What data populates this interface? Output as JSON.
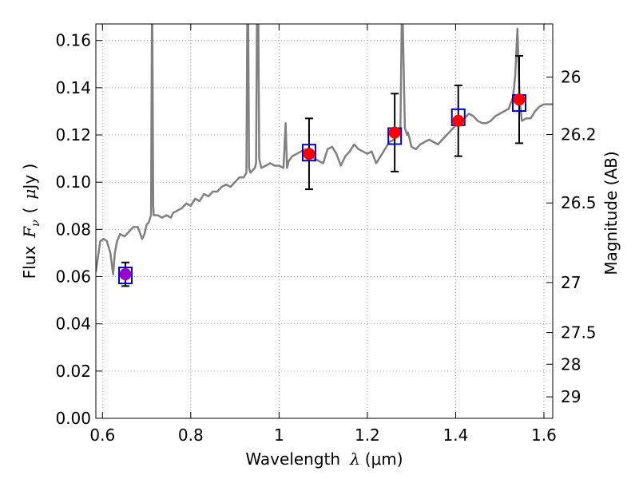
{
  "chart_data": {
    "type": "scatter",
    "title": "",
    "xlabel": "Wavelength",
    "xlabel_math": "λ",
    "xlabel_unit": "(μm)",
    "ylabel": "Flux",
    "ylabel_math": "F",
    "ylabel_math_sub": "ν",
    "ylabel_unit_open": "(",
    "ylabel_unit_mu": "μ",
    "ylabel_unit_rest": "Jy )",
    "y2label": "Magnitude (AB)",
    "xlim": [
      0.585,
      1.62
    ],
    "ylim": [
      0.0,
      0.167
    ],
    "grid": true,
    "x_ticks": [
      0.6,
      0.8,
      1.0,
      1.2,
      1.4,
      1.6
    ],
    "x_tick_labels": [
      "0.6",
      "0.8",
      "1",
      "1.2",
      "1.4",
      "1.6"
    ],
    "y_ticks": [
      0.0,
      0.02,
      0.04,
      0.06,
      0.08,
      0.1,
      0.12,
      0.14,
      0.16
    ],
    "y_tick_labels": [
      "0.00",
      "0.02",
      "0.04",
      "0.06",
      "0.08",
      "0.10",
      "0.12",
      "0.14",
      "0.16"
    ],
    "mag_ticks": [
      {
        "label": "26",
        "flux": 0.1445
      },
      {
        "label": "26.2",
        "flux": 0.1202
      },
      {
        "label": "26.5",
        "flux": 0.0912
      },
      {
        "label": "27",
        "flux": 0.0575
      },
      {
        "label": "27.5",
        "flux": 0.0363
      },
      {
        "label": "28",
        "flux": 0.0229
      },
      {
        "label": "29",
        "flux": 0.0091
      }
    ],
    "colors": {
      "model": "#808080",
      "observed": "#ff0000",
      "observed_first": "#9900cc",
      "model_box": "#0000cc",
      "errorbar": "#000000",
      "grid": "#999999"
    },
    "series": [
      {
        "role": "observed",
        "x": [
          0.652,
          1.068,
          1.262,
          1.406,
          1.544
        ],
        "y": [
          0.061,
          0.112,
          0.121,
          0.126,
          0.135
        ],
        "yerr": [
          0.005,
          0.015,
          0.0165,
          0.015,
          0.0185
        ]
      },
      {
        "role": "model_box",
        "x": [
          0.652,
          1.068,
          1.262,
          1.406,
          1.544
        ],
        "y": [
          0.0605,
          0.1125,
          0.1195,
          0.1275,
          0.1335
        ]
      },
      {
        "role": "model",
        "x": [
          0.585,
          0.595,
          0.603,
          0.61,
          0.618,
          0.624,
          0.628,
          0.633,
          0.64,
          0.65,
          0.66,
          0.67,
          0.68,
          0.69,
          0.695,
          0.7,
          0.705,
          0.71,
          0.712,
          0.713,
          0.715,
          0.716,
          0.718,
          0.725,
          0.735,
          0.745,
          0.755,
          0.76,
          0.77,
          0.78,
          0.79,
          0.8,
          0.81,
          0.82,
          0.83,
          0.84,
          0.85,
          0.86,
          0.87,
          0.88,
          0.89,
          0.9,
          0.91,
          0.92,
          0.926,
          0.928,
          0.93,
          0.932,
          0.935,
          0.94,
          0.945,
          0.948,
          0.95,
          0.953,
          0.955,
          0.96,
          0.97,
          0.98,
          0.99,
          1.0,
          1.01,
          1.015,
          1.018,
          1.022,
          1.03,
          1.04,
          1.05,
          1.06,
          1.07,
          1.08,
          1.09,
          1.1,
          1.11,
          1.12,
          1.13,
          1.14,
          1.15,
          1.16,
          1.17,
          1.18,
          1.19,
          1.2,
          1.21,
          1.22,
          1.23,
          1.24,
          1.25,
          1.26,
          1.27,
          1.275,
          1.278,
          1.28,
          1.285,
          1.29,
          1.292,
          1.295,
          1.3,
          1.31,
          1.32,
          1.33,
          1.34,
          1.35,
          1.36,
          1.37,
          1.38,
          1.39,
          1.4,
          1.41,
          1.42,
          1.43,
          1.44,
          1.45,
          1.46,
          1.47,
          1.48,
          1.49,
          1.5,
          1.51,
          1.52,
          1.53,
          1.535,
          1.54,
          1.545,
          1.55,
          1.56,
          1.57,
          1.58,
          1.59,
          1.6,
          1.61,
          1.62
        ],
        "y": [
          0.062,
          0.075,
          0.076,
          0.075,
          0.07,
          0.061,
          0.07,
          0.075,
          0.078,
          0.077,
          0.079,
          0.081,
          0.081,
          0.076,
          0.078,
          0.082,
          0.083,
          0.086,
          0.17,
          0.17,
          0.09,
          0.086,
          0.086,
          0.086,
          0.085,
          0.086,
          0.085,
          0.087,
          0.088,
          0.089,
          0.091,
          0.09,
          0.093,
          0.092,
          0.095,
          0.094,
          0.096,
          0.096,
          0.098,
          0.099,
          0.098,
          0.1,
          0.102,
          0.102,
          0.104,
          0.17,
          0.17,
          0.106,
          0.104,
          0.105,
          0.106,
          0.108,
          0.17,
          0.17,
          0.11,
          0.106,
          0.107,
          0.108,
          0.107,
          0.107,
          0.106,
          0.125,
          0.106,
          0.109,
          0.111,
          0.112,
          0.113,
          0.114,
          0.112,
          0.11,
          0.109,
          0.108,
          0.114,
          0.115,
          0.112,
          0.107,
          0.111,
          0.113,
          0.116,
          0.114,
          0.113,
          0.112,
          0.113,
          0.108,
          0.111,
          0.114,
          0.117,
          0.118,
          0.12,
          0.122,
          0.17,
          0.17,
          0.123,
          0.12,
          0.121,
          0.119,
          0.115,
          0.114,
          0.116,
          0.117,
          0.118,
          0.117,
          0.116,
          0.118,
          0.12,
          0.122,
          0.124,
          0.125,
          0.127,
          0.129,
          0.128,
          0.126,
          0.125,
          0.125,
          0.126,
          0.128,
          0.129,
          0.13,
          0.131,
          0.136,
          0.145,
          0.165,
          0.135,
          0.126,
          0.127,
          0.127,
          0.13,
          0.132,
          0.133,
          0.133,
          0.133
        ]
      }
    ]
  }
}
